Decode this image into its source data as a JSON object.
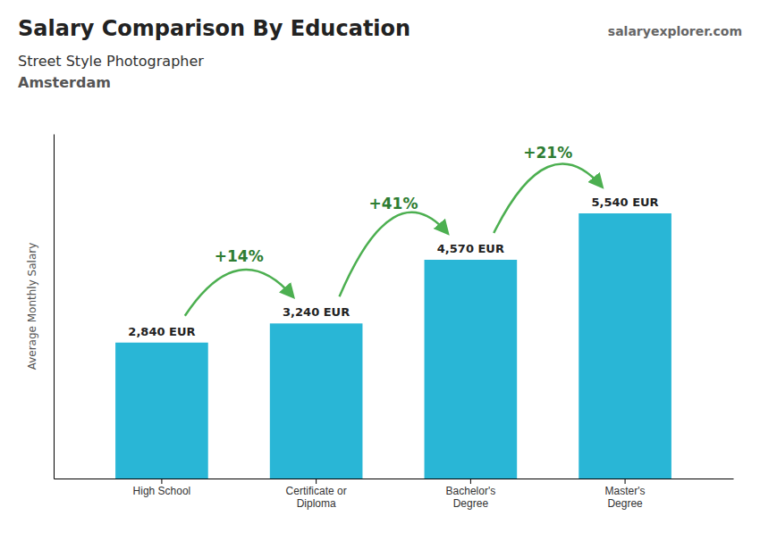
{
  "chart_data": {
    "type": "bar",
    "title": "Salary Comparison By Education",
    "subtitle": [
      "Street Style Photographer",
      "Amsterdam"
    ],
    "watermark": "salaryexplorer.com",
    "ylabel": "Average Monthly Salary",
    "categories": [
      "High School",
      "Certificate or\nDiploma",
      "Bachelor's\nDegree",
      "Master's\nDegree"
    ],
    "values": [
      2840,
      3240,
      4570,
      5540
    ],
    "value_labels": [
      "2,840 EUR",
      "3,240 EUR",
      "4,570 EUR",
      "5,540 EUR"
    ],
    "data_labels": true,
    "annotations": [
      "+14%",
      "+41%",
      "+21%"
    ],
    "color": "#29b6d6",
    "ylim": [
      0,
      7200
    ],
    "tick_labels": "x",
    "grid": false
  }
}
